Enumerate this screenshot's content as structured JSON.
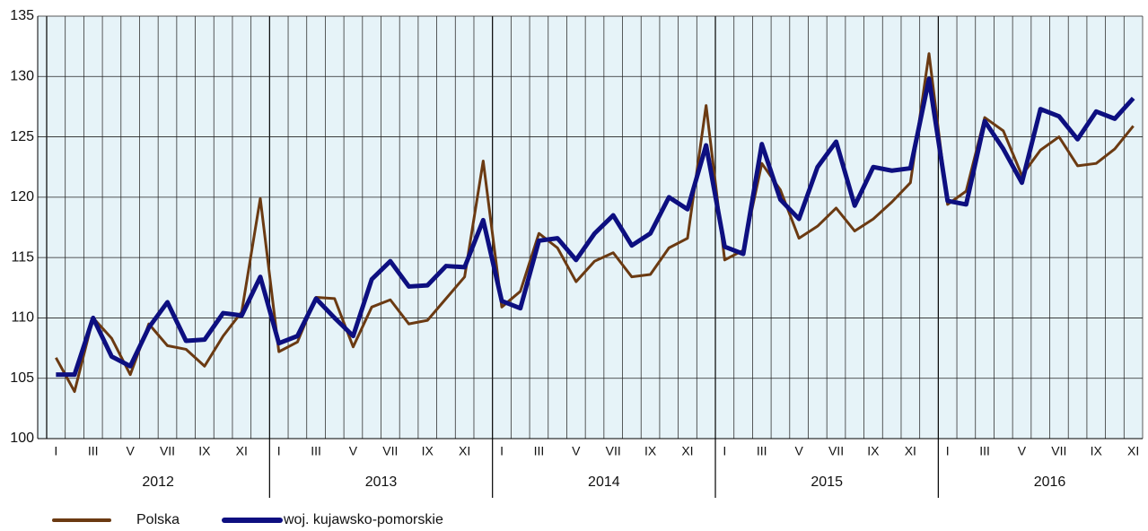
{
  "chart_data": {
    "type": "line",
    "categories": [
      "I",
      null,
      "III",
      null,
      "V",
      null,
      "VII",
      null,
      "IX",
      null,
      "XI",
      null,
      "I",
      null,
      "III",
      null,
      "V",
      null,
      "VII",
      null,
      "IX",
      null,
      "XI",
      null,
      "I",
      null,
      "III",
      null,
      "V",
      null,
      "VII",
      null,
      "IX",
      null,
      "XI",
      null,
      "I",
      null,
      "III",
      null,
      "V",
      null,
      "VII",
      null,
      "IX",
      null,
      "XI",
      null,
      "I",
      null,
      "III",
      null,
      "V",
      null,
      "VII",
      null,
      "IX",
      null,
      "XI"
    ],
    "years": [
      "2012",
      "2013",
      "2014",
      "2015",
      "2016"
    ],
    "series": [
      {
        "name": "Polska",
        "color": "#6b3a12",
        "values": [
          106.7,
          103.9,
          110.0,
          108.3,
          105.3,
          109.5,
          107.7,
          107.4,
          106.0,
          108.5,
          110.5,
          119.9,
          107.2,
          108.0,
          111.7,
          111.6,
          107.6,
          110.9,
          111.5,
          109.5,
          109.8,
          111.6,
          113.4,
          123.0,
          110.9,
          112.2,
          117.0,
          115.8,
          113.0,
          114.7,
          115.4,
          113.4,
          113.6,
          115.8,
          116.6,
          127.6,
          114.8,
          115.6,
          122.8,
          120.6,
          116.6,
          117.6,
          119.1,
          117.2,
          118.2,
          119.6,
          121.2,
          131.9,
          119.4,
          120.5,
          126.6,
          125.5,
          121.8,
          123.9,
          125.0,
          122.6,
          122.8,
          124.0,
          125.9
        ]
      },
      {
        "name": "woj. kujawsko-pomorskie",
        "color": "#0d0f80",
        "values": [
          105.3,
          105.3,
          110.0,
          106.8,
          106.0,
          109.2,
          111.3,
          108.1,
          108.2,
          110.4,
          110.2,
          113.4,
          107.9,
          108.5,
          111.6,
          110.0,
          108.5,
          113.2,
          114.7,
          112.6,
          112.7,
          114.3,
          114.2,
          118.1,
          111.4,
          110.8,
          116.4,
          116.6,
          114.8,
          117.0,
          118.5,
          116.0,
          117.0,
          120.0,
          119.0,
          124.3,
          115.9,
          115.3,
          124.4,
          119.8,
          118.2,
          122.5,
          124.6,
          119.3,
          122.5,
          122.2,
          122.4,
          129.8,
          119.7,
          119.4,
          126.3,
          124.0,
          121.2,
          127.3,
          126.7,
          124.8,
          127.1,
          126.5,
          128.2
        ]
      }
    ],
    "ylim": [
      100,
      135
    ],
    "yticks": [
      100,
      105,
      110,
      115,
      120,
      125,
      130,
      135
    ],
    "grid": true
  }
}
